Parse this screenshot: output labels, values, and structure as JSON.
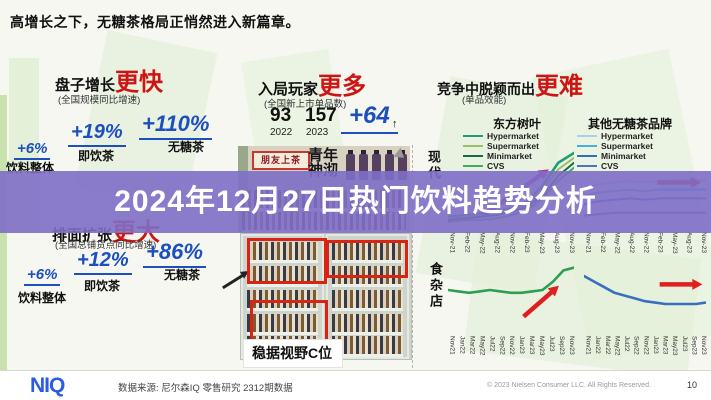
{
  "header": {
    "title": "高增长之下，无糖茶格局正悄然进入新篇章。"
  },
  "banner": {
    "title": "2024年12月27日热门饮料趋势分析",
    "color": "#7e6ec6"
  },
  "colors": {
    "accent_red": "#cf1414",
    "accent_blue": "#1d4fbe",
    "niq_blue": "#2b5ce6"
  },
  "sections": {
    "growth": {
      "title": "盘子增长",
      "emphasis": "更快",
      "subtitle": "(全国规模同比增速)",
      "stats": [
        {
          "value": "+6%",
          "label": "饮料整体"
        },
        {
          "value": "+19%",
          "label": "即饮茶"
        },
        {
          "value": "+110%",
          "label": "无糖茶"
        }
      ]
    },
    "players": {
      "title": "入局玩家",
      "emphasis": "更多",
      "subtitle": "(全国新上市单品数)",
      "counts": [
        {
          "value": "93",
          "year": "2022"
        },
        {
          "value": "157",
          "year": "2023"
        }
      ],
      "delta": "+64",
      "delta_arrow": "↑",
      "collage": {
        "box_label": "朋友上茶",
        "brand_label": "青年\n神沏"
      },
      "photo_caption": "稳据视野C位"
    },
    "competition": {
      "title": "竞争中脱颖而出",
      "emphasis": "更难",
      "subtitle": "(单品效能)",
      "chart_headers": [
        "东方树叶",
        "其他无糖茶品牌"
      ],
      "row_labels": [
        "现代",
        "食杂店"
      ],
      "legends": {
        "dongfang": [
          {
            "label": "Hypermarket",
            "color": "#1d9e74"
          },
          {
            "label": "Supermarket",
            "color": "#9bbf65"
          },
          {
            "label": "Minimarket",
            "color": "#156a4a"
          },
          {
            "label": "CVS",
            "color": "#3fae5a"
          }
        ],
        "others": [
          {
            "label": "Hypermarket",
            "color": "#aecde8"
          },
          {
            "label": "Supermarket",
            "color": "#3eb3e0"
          },
          {
            "label": "Minimarket",
            "color": "#2e6fb5"
          },
          {
            "label": "CVS",
            "color": "#4a74c4"
          }
        ]
      }
    },
    "expansion": {
      "title": "排面扩张",
      "emphasis": "更大",
      "subtitle": "(全国总铺货点同比增速)",
      "stats": [
        {
          "value": "+6%",
          "label": "饮料整体"
        },
        {
          "value": "+12%",
          "label": "即饮茶"
        },
        {
          "value": "+86%",
          "label": "无糖茶"
        }
      ]
    }
  },
  "footer": {
    "logo": "NIQ",
    "source": "数据来源: 尼尔森IQ 零售研究 2312期数据",
    "copyright": "© 2023 Nielsen Consumer LLC. All Rights Reserved.",
    "page": "10"
  },
  "chart_data": [
    {
      "type": "line",
      "title": "东方树叶",
      "channel": "现代",
      "ylim": [
        0,
        50
      ],
      "x": [
        "Nov-21",
        "Feb-22",
        "May-22",
        "Aug-22",
        "Nov-22",
        "Feb-23",
        "May-23",
        "Aug-23",
        "Nov-23"
      ],
      "series": [
        {
          "name": "Hypermarket",
          "color": "#1d9e74",
          "width": 2.6,
          "values": [
            8,
            9,
            10,
            11,
            13,
            17,
            27,
            41,
            47
          ]
        },
        {
          "name": "Supermarket",
          "color": "#9bbf65",
          "width": 2,
          "values": [
            7,
            8,
            9,
            10,
            12,
            15,
            24,
            37,
            44
          ]
        },
        {
          "name": "Minimarket",
          "color": "#156a4a",
          "width": 2,
          "values": [
            6,
            7,
            8,
            9,
            11,
            14,
            21,
            33,
            41
          ]
        },
        {
          "name": "CVS",
          "color": "#3fae5a",
          "width": 2,
          "values": [
            5,
            6,
            6,
            7,
            9,
            12,
            19,
            30,
            38
          ]
        }
      ],
      "arrow": {
        "color": "#b03a8c",
        "x1": 0.28,
        "y1": 0.82,
        "x2": 0.8,
        "y2": 0.26
      }
    },
    {
      "type": "line",
      "title": "其他无糖茶品牌",
      "channel": "现代",
      "ylim": [
        0,
        50
      ],
      "x": [
        "Nov-21",
        "Feb-22",
        "May-22",
        "Aug-22",
        "Nov-22",
        "Feb-23",
        "May-23",
        "Aug-23",
        "Nov-23"
      ],
      "series": [
        {
          "name": "Hypermarket",
          "color": "#aecde8",
          "width": 2,
          "values": [
            30,
            32,
            33,
            34,
            33,
            34,
            35,
            35,
            34
          ]
        },
        {
          "name": "Supermarket",
          "color": "#3eb3e0",
          "width": 2,
          "values": [
            24,
            26,
            27,
            28,
            27,
            28,
            28,
            28,
            28
          ]
        },
        {
          "name": "Minimarket",
          "color": "#2e6fb5",
          "width": 2,
          "values": [
            18,
            20,
            21,
            22,
            21,
            22,
            22,
            22,
            22
          ]
        },
        {
          "name": "CVS",
          "color": "#4a74c4",
          "width": 2,
          "values": [
            10,
            11,
            12,
            12,
            12,
            12,
            12,
            12,
            12
          ]
        }
      ],
      "arrow": {
        "color": "#d62222",
        "x1": 0.6,
        "y1": 0.34,
        "x2": 0.96,
        "y2": 0.34
      }
    },
    {
      "type": "line",
      "title": "东方树叶",
      "channel": "食杂店",
      "ylim": [
        0,
        50
      ],
      "x": [
        "Nov21",
        "Jan22",
        "Mar22",
        "May22",
        "Jul22",
        "Sep22",
        "Nov22",
        "Jan23",
        "Mar23",
        "May23",
        "Jul23",
        "Sep23",
        "Nov23"
      ],
      "series": [
        {
          "name": "东方树叶",
          "color": "#2e9e4f",
          "width": 2.6,
          "values": [
            30,
            29,
            28,
            29,
            30,
            29,
            28,
            28,
            29,
            30,
            36,
            44,
            46
          ]
        }
      ],
      "arrow": {
        "color": "#e02020",
        "x1": 0.6,
        "y1": 0.78,
        "x2": 0.88,
        "y2": 0.34
      }
    },
    {
      "type": "line",
      "title": "其他无糖茶品牌",
      "channel": "食杂店",
      "ylim": [
        0,
        50
      ],
      "x": [
        "Nov21",
        "Jan22",
        "Mar22",
        "May22",
        "Jul22",
        "Sep22",
        "Nov22",
        "Jan23",
        "Mar23",
        "May23",
        "Jul23",
        "Sep23",
        "Nov23"
      ],
      "series": [
        {
          "name": "其他无糖茶品牌",
          "color": "#3a6fc0",
          "width": 2.6,
          "values": [
            40,
            36,
            32,
            28,
            26,
            24,
            22,
            21,
            20,
            20,
            20,
            20,
            21
          ]
        }
      ],
      "arrow": {
        "color": "#e02020",
        "x1": 0.62,
        "y1": 0.32,
        "x2": 0.97,
        "y2": 0.32
      }
    }
  ]
}
